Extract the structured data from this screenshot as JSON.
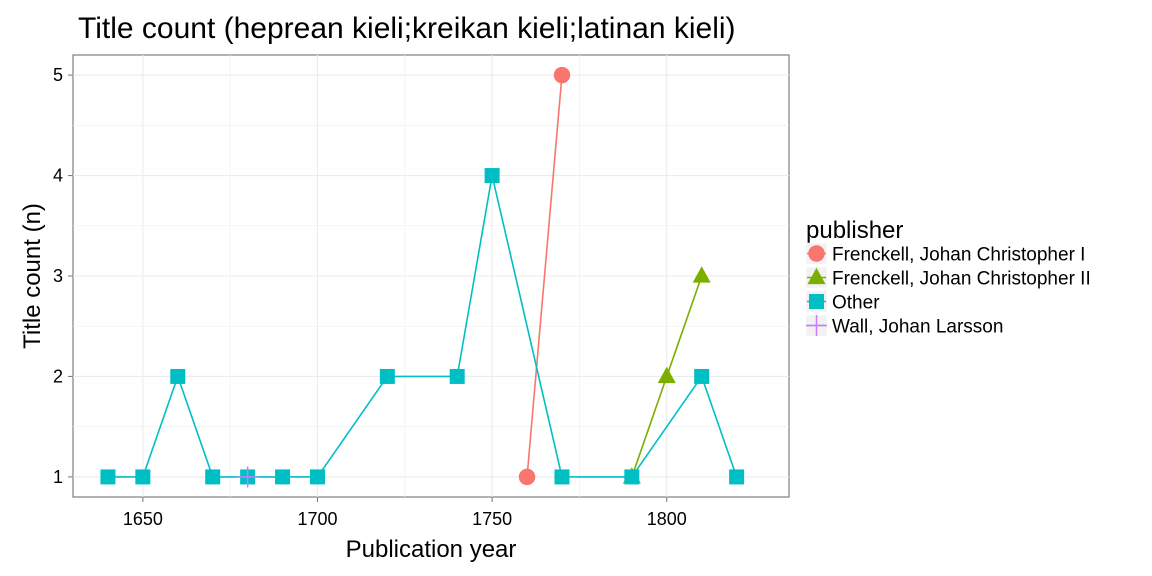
{
  "chart_data": {
    "type": "line",
    "title": "Title count (heprean kieli;kreikan kieli;latinan kieli)",
    "xlabel": "Publication year",
    "ylabel": "Title count (n)",
    "xlim": [
      1630,
      1835
    ],
    "ylim": [
      0.8,
      5.2
    ],
    "x_ticks": [
      1650,
      1700,
      1750,
      1800
    ],
    "y_ticks": [
      1,
      2,
      3,
      4,
      5
    ],
    "grid": true,
    "legend_position": "right",
    "legend_title": "publisher",
    "series": [
      {
        "name": "Frenckell, Johan Christopher I",
        "color": "#F8766D",
        "marker": "circle",
        "points": [
          {
            "x": 1760,
            "y": 1
          },
          {
            "x": 1770,
            "y": 5
          }
        ]
      },
      {
        "name": "Frenckell, Johan Christopher II",
        "color": "#7CAE00",
        "marker": "triangle",
        "points": [
          {
            "x": 1790,
            "y": 1
          },
          {
            "x": 1800,
            "y": 2
          },
          {
            "x": 1810,
            "y": 3
          }
        ]
      },
      {
        "name": "Other",
        "color": "#00BFC4",
        "marker": "square",
        "points": [
          {
            "x": 1640,
            "y": 1
          },
          {
            "x": 1650,
            "y": 1
          },
          {
            "x": 1660,
            "y": 2
          },
          {
            "x": 1670,
            "y": 1
          },
          {
            "x": 1680,
            "y": 1
          },
          {
            "x": 1690,
            "y": 1
          },
          {
            "x": 1700,
            "y": 1
          },
          {
            "x": 1720,
            "y": 2
          },
          {
            "x": 1740,
            "y": 2
          },
          {
            "x": 1750,
            "y": 4
          },
          {
            "x": 1770,
            "y": 1
          },
          {
            "x": 1790,
            "y": 1
          },
          {
            "x": 1810,
            "y": 2
          },
          {
            "x": 1820,
            "y": 1
          }
        ]
      },
      {
        "name": "Wall, Johan Larsson",
        "color": "#C77CFF",
        "marker": "plus",
        "points": [
          {
            "x": 1680,
            "y": 1
          }
        ]
      }
    ]
  }
}
